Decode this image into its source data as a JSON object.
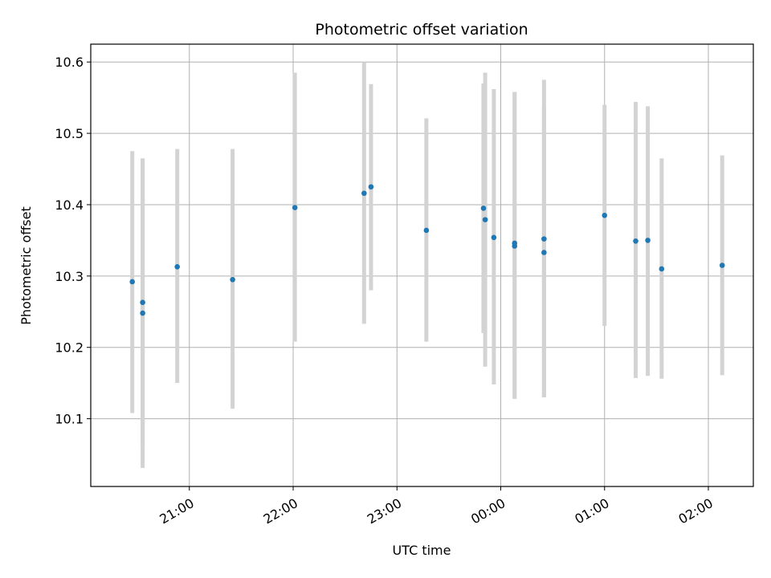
{
  "chart_data": {
    "type": "scatter",
    "title": "Photometric offset variation",
    "xlabel": "UTC time",
    "ylabel": "Photometric offset",
    "grid": true,
    "x_unit": "UTC time (hh:mm)",
    "xlim": [
      "20:03",
      "02:26"
    ],
    "ylim": [
      10.005,
      10.625
    ],
    "xticks": [
      "21:00",
      "22:00",
      "23:00",
      "00:00",
      "01:00",
      "02:00"
    ],
    "yticks": [
      10.1,
      10.2,
      10.3,
      10.4,
      10.5,
      10.6
    ],
    "marker_color": "#1f77b4",
    "errorbar_color": "#d3d3d3",
    "points": [
      {
        "x": "20:27",
        "y": 10.292,
        "err_low": 10.108,
        "err_high": 10.475
      },
      {
        "x": "20:33",
        "y": 10.263,
        "err_low": 10.062,
        "err_high": 10.465
      },
      {
        "x": "20:33",
        "y": 10.248,
        "err_low": 10.031,
        "err_high": 10.464
      },
      {
        "x": "20:53",
        "y": 10.313,
        "err_low": 10.15,
        "err_high": 10.478
      },
      {
        "x": "21:25",
        "y": 10.295,
        "err_low": 10.114,
        "err_high": 10.478
      },
      {
        "x": "22:01",
        "y": 10.396,
        "err_low": 10.208,
        "err_high": 10.585
      },
      {
        "x": "22:41",
        "y": 10.416,
        "err_low": 10.233,
        "err_high": 10.6
      },
      {
        "x": "22:45",
        "y": 10.425,
        "err_low": 10.28,
        "err_high": 10.569
      },
      {
        "x": "23:17",
        "y": 10.364,
        "err_low": 10.208,
        "err_high": 10.521
      },
      {
        "x": "23:50",
        "y": 10.395,
        "err_low": 10.22,
        "err_high": 10.57
      },
      {
        "x": "23:51",
        "y": 10.379,
        "err_low": 10.173,
        "err_high": 10.585
      },
      {
        "x": "23:56",
        "y": 10.354,
        "err_low": 10.148,
        "err_high": 10.562
      },
      {
        "x": "00:08",
        "y": 10.346,
        "err_low": 10.128,
        "err_high": 10.558
      },
      {
        "x": "00:08",
        "y": 10.342,
        "err_low": 10.128,
        "err_high": 10.558
      },
      {
        "x": "00:25",
        "y": 10.333,
        "err_low": 10.13,
        "err_high": 10.536
      },
      {
        "x": "00:25",
        "y": 10.352,
        "err_low": 10.13,
        "err_high": 10.575
      },
      {
        "x": "01:00",
        "y": 10.385,
        "err_low": 10.23,
        "err_high": 10.54
      },
      {
        "x": "01:18",
        "y": 10.349,
        "err_low": 10.157,
        "err_high": 10.544
      },
      {
        "x": "01:25",
        "y": 10.35,
        "err_low": 10.16,
        "err_high": 10.538
      },
      {
        "x": "01:33",
        "y": 10.31,
        "err_low": 10.156,
        "err_high": 10.465
      },
      {
        "x": "02:08",
        "y": 10.315,
        "err_low": 10.161,
        "err_high": 10.469
      }
    ]
  }
}
